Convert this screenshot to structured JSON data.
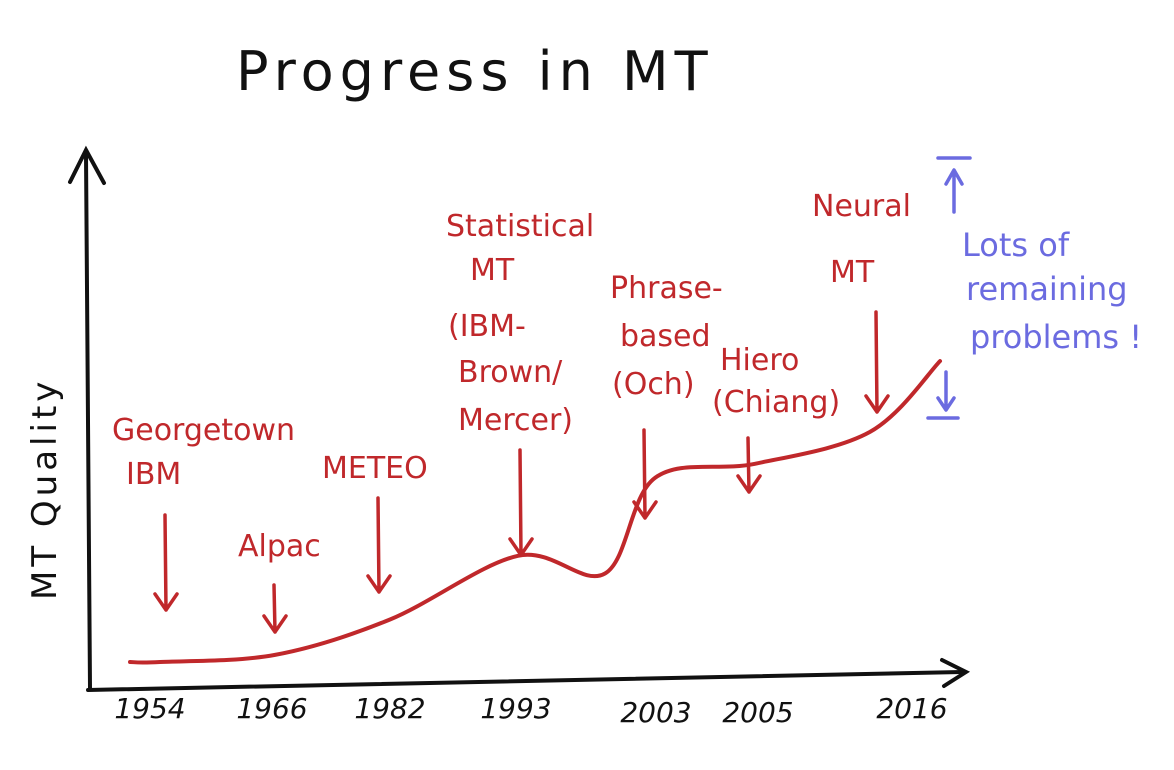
{
  "chart_data": {
    "type": "line",
    "title": "Progress in MT",
    "xlabel": "",
    "ylabel": "MT Quality",
    "x_tick_labels": [
      "1954",
      "1966",
      "1982",
      "1993",
      "2003",
      "2005",
      "2016"
    ],
    "series": [
      {
        "points": [
          {
            "x": 1954,
            "y": 0.0
          },
          {
            "x": 1966,
            "y": 0.02
          },
          {
            "x": 1982,
            "y": 0.12
          },
          {
            "x": 1993,
            "y": 0.3
          },
          {
            "x": 1997,
            "y": 0.25
          },
          {
            "x": 2003,
            "y": 0.52
          },
          {
            "x": 2005,
            "y": 0.56
          },
          {
            "x": 2012,
            "y": 0.65
          },
          {
            "x": 2016,
            "y": 0.85
          }
        ]
      }
    ],
    "annotations": [
      {
        "label": "Georgetown IBM",
        "x": 1954
      },
      {
        "label": "Alpac",
        "x": 1966
      },
      {
        "label": "METEO",
        "x": 1982
      },
      {
        "label": "Statistical MT (IBM- Brown/ Mercer)",
        "x": 1993
      },
      {
        "label": "Phrase- based (Och)",
        "x": 2003
      },
      {
        "label": "Hiero (Chiang)",
        "x": 2005
      },
      {
        "label": "Neural MT",
        "x": 2012
      }
    ],
    "side_note": "Lots of remaining problems !",
    "grid": false
  },
  "colors": {
    "curve": "#c0282b",
    "annotation": "#c0282b",
    "side_note": "#6b6be0",
    "axes": "#111111"
  }
}
